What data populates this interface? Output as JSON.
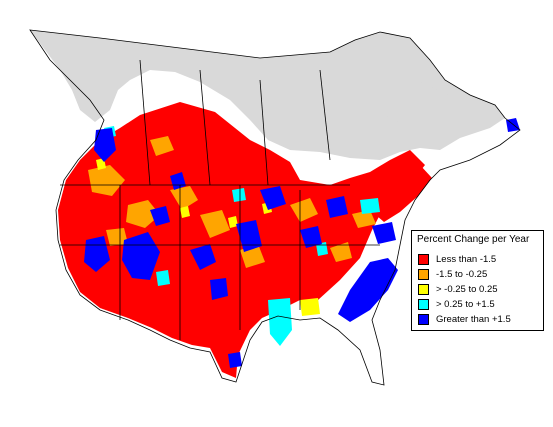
{
  "legend": {
    "title": "Percent Change per Year",
    "items": [
      {
        "label": "Less than -1.5",
        "color": "#ff0000"
      },
      {
        "label": "-1.5 to -0.25",
        "color": "#ffa500"
      },
      {
        "label": "> -0.25 to 0.25",
        "color": "#ffff00"
      },
      {
        "label": "> 0.25 to +1.5",
        "color": "#00ffff"
      },
      {
        "label": "Greater than +1.5",
        "color": "#0000ff"
      }
    ]
  },
  "colors": {
    "no_data_region": "#d9d9d9",
    "background": "#ffffff",
    "boundary_lines": "#000000"
  }
}
